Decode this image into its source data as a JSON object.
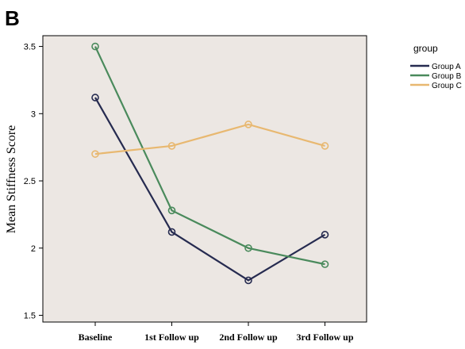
{
  "panel_label": "B",
  "chart_data": {
    "type": "line",
    "categories": [
      "Baseline",
      "1st Follow up",
      "2nd Follow up",
      "3rd Follow up"
    ],
    "series": [
      {
        "name": "Group A",
        "values": [
          3.12,
          2.12,
          1.76,
          2.1
        ],
        "color": "#262b50"
      },
      {
        "name": "Group B",
        "values": [
          3.5,
          2.28,
          2.0,
          1.88
        ],
        "color": "#4a8a5c"
      },
      {
        "name": "Group C",
        "values": [
          2.7,
          2.76,
          2.92,
          2.76
        ],
        "color": "#e8b870"
      }
    ],
    "ylabel": "Mean Stiffness Score",
    "xlabel": "",
    "ylim": [
      1.45,
      3.58
    ],
    "yticks": [
      1.5,
      2,
      2.5,
      3,
      3.5
    ],
    "ytick_labels": [
      "1.5",
      "2",
      "2.5",
      "3",
      "3.5"
    ],
    "legend": {
      "title": "group",
      "position": "right"
    },
    "plot_background": "#ece7e3",
    "grid": false
  }
}
